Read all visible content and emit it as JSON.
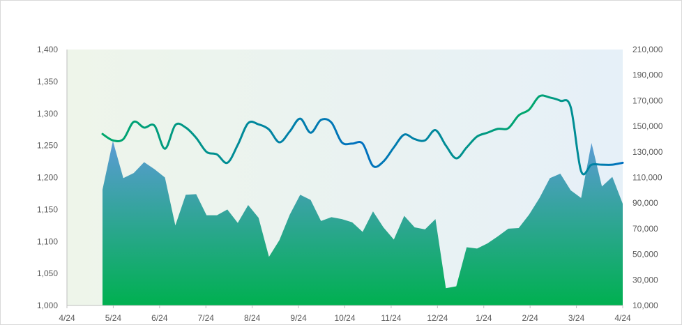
{
  "chart_data": {
    "type": "area",
    "title": "",
    "xlabel": "",
    "ylabel": "",
    "y2label": "",
    "grid": false,
    "legend": "none",
    "x_ticks": [
      "4/24",
      "5/24",
      "6/24",
      "7/24",
      "8/24",
      "9/24",
      "10/24",
      "11/24",
      "12/24",
      "1/24",
      "2/24",
      "3/24",
      "4/24"
    ],
    "ylim": [
      1000,
      1400
    ],
    "y_ticks": [
      "1,000",
      "1,050",
      "1,100",
      "1,150",
      "1,200",
      "1,250",
      "1,300",
      "1,350",
      "1,400"
    ],
    "y2lim": [
      10000,
      210000
    ],
    "y2_ticks": [
      "10,000",
      "30,000",
      "50,000",
      "70,000",
      "90,000",
      "110,000",
      "130,000",
      "150,000",
      "170,000",
      "190,000",
      "210,000"
    ],
    "colors": {
      "area_top": "#5b9bd5",
      "area_bottom": "#00b050",
      "line_start": "#00a86b",
      "line_end": "#0070c0",
      "plot_bg_left": "#eef5ea",
      "plot_bg_right": "#e6f0f8"
    },
    "series": [
      {
        "axis": "left",
        "style": "area",
        "values": [
          1181,
          1257,
          1199,
          1207,
          1224,
          1213,
          1200,
          1125,
          1173,
          1174,
          1141,
          1141,
          1150,
          1129,
          1157,
          1137,
          1076,
          1102,
          1142,
          1173,
          1165,
          1132,
          1138,
          1135,
          1130,
          1115,
          1147,
          1122,
          1103,
          1140,
          1122,
          1119,
          1135,
          1027,
          1030,
          1091,
          1089,
          1097,
          1108,
          1120,
          1121,
          1142,
          1168,
          1199,
          1206,
          1180,
          1168,
          1254,
          1186,
          1201,
          1159
        ]
      },
      {
        "axis": "right",
        "style": "line",
        "values": [
          1268,
          1258,
          1260,
          1287,
          1278,
          1281,
          1245,
          1282,
          1278,
          1262,
          1240,
          1236,
          1223,
          1251,
          1285,
          1283,
          1275,
          1255,
          1272,
          1292,
          1270,
          1290,
          1286,
          1255,
          1253,
          1253,
          1218,
          1225,
          1247,
          1267,
          1260,
          1258,
          1274,
          1250,
          1230,
          1247,
          1264,
          1270,
          1276,
          1277,
          1297,
          1306,
          1327,
          1325,
          1320,
          1310,
          1210,
          1220,
          1220,
          1220,
          1223
        ]
      }
    ]
  }
}
